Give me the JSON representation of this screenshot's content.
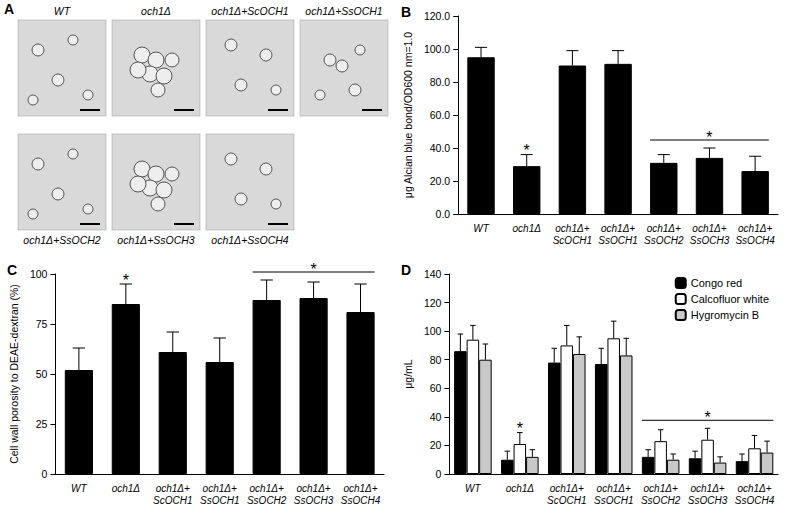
{
  "panel_a": {
    "panel": "A",
    "images": [
      {
        "label": "WT"
      },
      {
        "label": "och1Δ"
      },
      {
        "label": "och1Δ+ScOCH1"
      },
      {
        "label": "och1Δ+SsOCH1"
      },
      {
        "label": "och1Δ+SsOCH2"
      },
      {
        "label": "och1Δ+SsOCH3"
      },
      {
        "label": "och1Δ+SsOCH4"
      }
    ]
  },
  "chart_data": [
    {
      "type": "bar",
      "panel": "B",
      "categories": [
        "WT",
        "och1Δ",
        "och1Δ+ScOCH1",
        "och1Δ+SsOCH1",
        "och1Δ+SsOCH2",
        "och1Δ+SsOCH3",
        "och1Δ+SsOCH4"
      ],
      "y_label": "μg Alcian blue bond/OD600 nm=1.0",
      "values": [
        95,
        29,
        90,
        91,
        31,
        34,
        26
      ],
      "errors": [
        6,
        7,
        9,
        8,
        5,
        6,
        9
      ],
      "color": "#000000",
      "ylim": [
        0,
        120
      ],
      "yticks": [
        {
          "value": 0,
          "label": "0.0"
        },
        {
          "value": 20,
          "label": "20.0"
        },
        {
          "value": 40,
          "label": "40.0"
        },
        {
          "value": 60,
          "label": "60.0"
        },
        {
          "value": 80,
          "label": "80.0"
        },
        {
          "value": 100,
          "label": "100.0"
        },
        {
          "value": 120,
          "label": "120.0"
        }
      ],
      "grid": false,
      "annotations": [
        {
          "text": "*",
          "categories": [
            "och1Δ"
          ]
        },
        {
          "text": "*",
          "categories": [
            "och1Δ+SsOCH2",
            "och1Δ+SsOCH3",
            "och1Δ+SsOCH4"
          ]
        }
      ]
    },
    {
      "type": "bar",
      "panel": "C",
      "categories": [
        "WT",
        "och1Δ",
        "och1Δ+ScOCH1",
        "och1Δ+SsOCH1",
        "och1Δ+SsOCH2",
        "och1Δ+SsOCH3",
        "och1Δ+SsOCH4"
      ],
      "y_label": "Cell wall porosity to DEAE-dextran (%)",
      "values": [
        52,
        85,
        61,
        56,
        87,
        88,
        81
      ],
      "errors": [
        11,
        10,
        10,
        12,
        10,
        8,
        14
      ],
      "color": "#000000",
      "ylim": [
        0,
        100
      ],
      "yticks": [
        0,
        25,
        50,
        75,
        100
      ],
      "grid": false,
      "annotations": [
        {
          "text": "*",
          "categories": [
            "och1Δ"
          ]
        },
        {
          "text": "*",
          "categories": [
            "och1Δ+SsOCH2",
            "och1Δ+SsOCH3",
            "och1Δ+SsOCH4"
          ]
        }
      ]
    },
    {
      "type": "bar",
      "panel": "D",
      "categories": [
        "WT",
        "och1Δ",
        "och1Δ+ScOCH1",
        "och1Δ+SsOCH1",
        "och1Δ+SsOCH2",
        "och1Δ+SsOCH3",
        "och1Δ+SsOCH4"
      ],
      "y_label": "μg/mL",
      "series": [
        {
          "name": "Congo red",
          "color": "#000000",
          "values": [
            86,
            10,
            78,
            77,
            12,
            11,
            9
          ],
          "errors": [
            12,
            6,
            10,
            11,
            5,
            5,
            5
          ]
        },
        {
          "name": "Calcofluor white",
          "color": "#ffffff",
          "values": [
            94,
            21,
            90,
            95,
            23,
            24,
            18
          ],
          "errors": [
            10,
            8,
            14,
            12,
            8,
            8,
            9
          ]
        },
        {
          "name": "Hygromycin B",
          "color": "#c8c8c8",
          "values": [
            80,
            12,
            84,
            83,
            10,
            8,
            15
          ],
          "errors": [
            11,
            5,
            12,
            12,
            4,
            4,
            8
          ]
        }
      ],
      "ylim": [
        0,
        140
      ],
      "yticks": [
        0,
        20,
        40,
        60,
        80,
        100,
        120,
        140
      ],
      "grid": false,
      "legend": "top-right",
      "annotations": [
        {
          "text": "*",
          "categories": [
            "och1Δ"
          ]
        },
        {
          "text": "*",
          "categories": [
            "och1Δ+SsOCH2",
            "och1Δ+SsOCH3",
            "och1Δ+SsOCH4"
          ]
        }
      ]
    }
  ]
}
